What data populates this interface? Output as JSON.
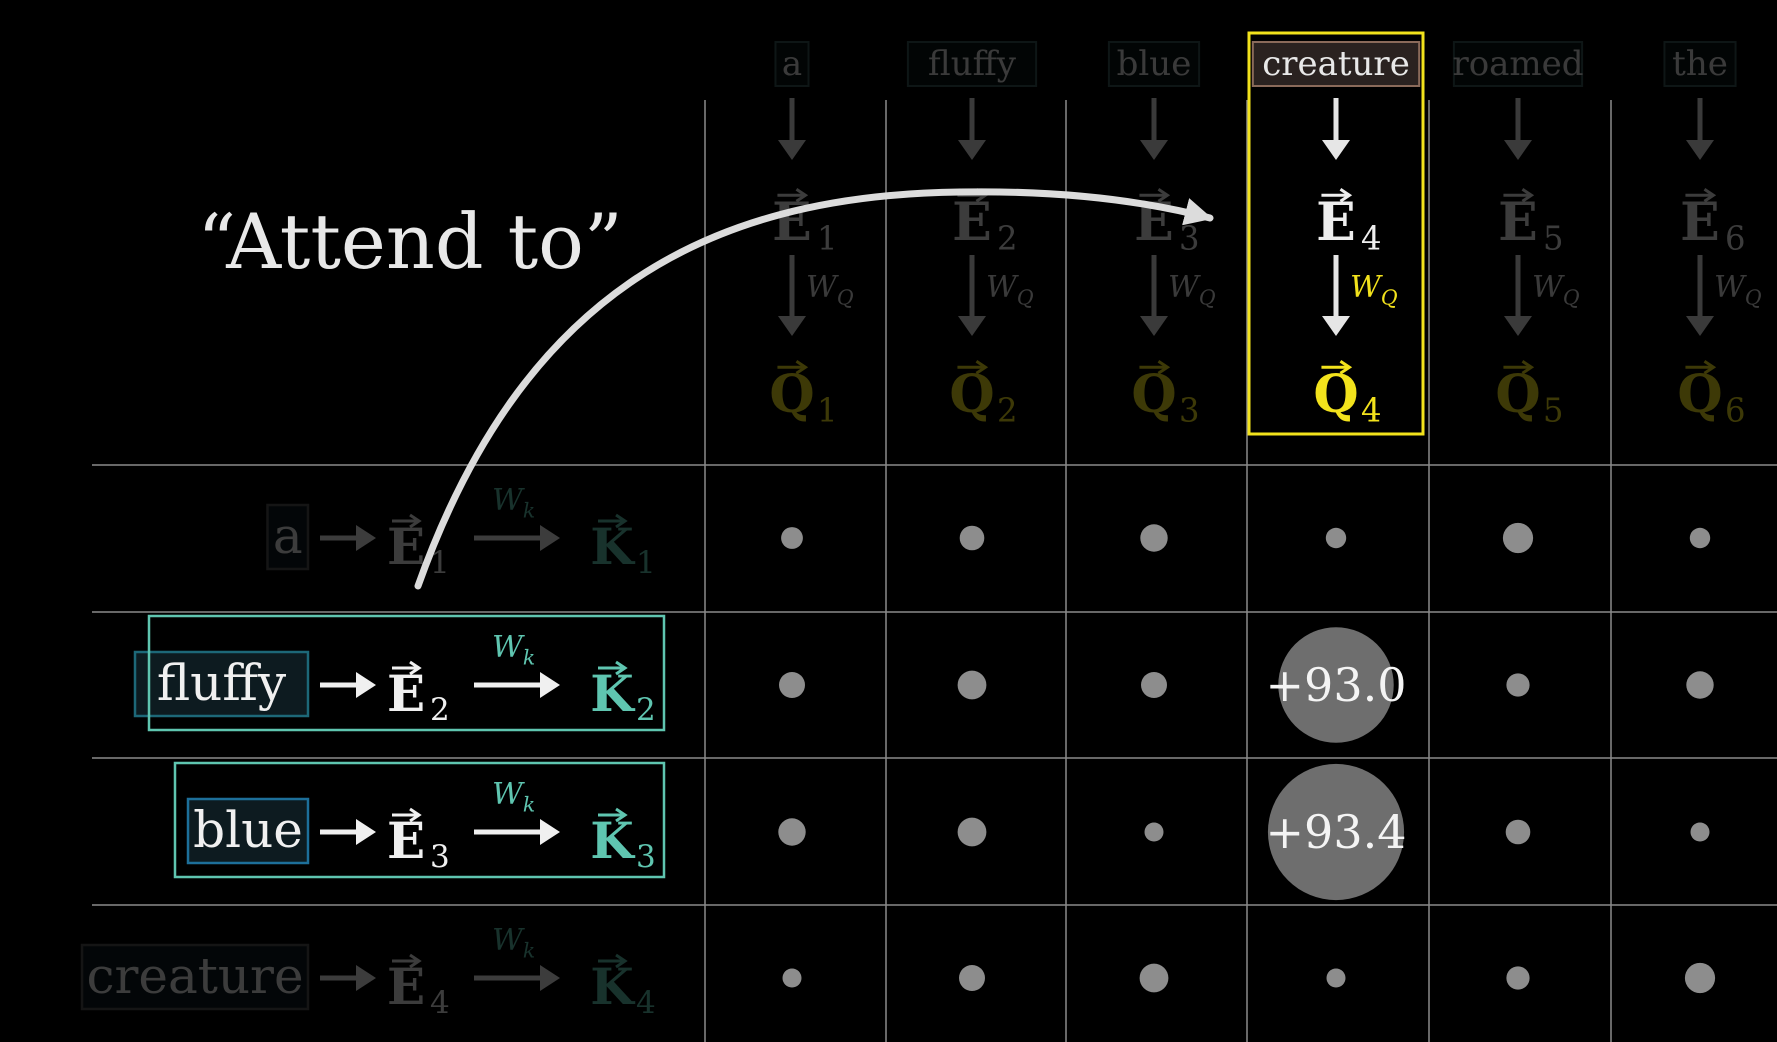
{
  "title": "“Attend to”",
  "colors": {
    "background": "#000000",
    "grid": "#8a8a8a",
    "query": "#f2e21c",
    "key": "#5fc5b0",
    "fluffy_box": "#1d6878",
    "blue_box": "#1d6f9a",
    "creature_box": "#8a6a5a",
    "dot": "#8d8d8d",
    "arrow": "#dcdcdc"
  },
  "matrix_symbols": {
    "E": "E",
    "Q": "Q",
    "K": "K",
    "W_Q": "W",
    "W_Q_sub": "Q",
    "W_k": "W",
    "W_k_sub": "k"
  },
  "columns": [
    {
      "token": "a",
      "index": "1",
      "highlight": false
    },
    {
      "token": "fluffy",
      "index": "2",
      "highlight": false
    },
    {
      "token": "blue",
      "index": "3",
      "highlight": false
    },
    {
      "token": "creature",
      "index": "4",
      "highlight": true
    },
    {
      "token": "roamed",
      "index": "5",
      "highlight": false
    },
    {
      "token": "the",
      "index": "6",
      "highlight": false
    }
  ],
  "rows": [
    {
      "token": "a",
      "index": "1",
      "highlight": false
    },
    {
      "token": "fluffy",
      "index": "2",
      "highlight": true
    },
    {
      "token": "blue",
      "index": "3",
      "highlight": true
    },
    {
      "token": "creature",
      "index": "4",
      "highlight": false
    }
  ],
  "grid_dot_sizes": [
    [
      0.35,
      0.45,
      0.55,
      0.3,
      0.65,
      0.3
    ],
    [
      0.5,
      0.6,
      0.5,
      null,
      0.4,
      0.55
    ],
    [
      0.55,
      0.6,
      0.25,
      null,
      0.45,
      0.25
    ],
    [
      0.25,
      0.5,
      0.6,
      0.25,
      0.4,
      0.65
    ]
  ],
  "highlight_scores": [
    {
      "row": 1,
      "col": 3,
      "label": "+93.0",
      "size": 0.78
    },
    {
      "row": 2,
      "col": 3,
      "label": "+93.4",
      "size": 0.92
    }
  ]
}
